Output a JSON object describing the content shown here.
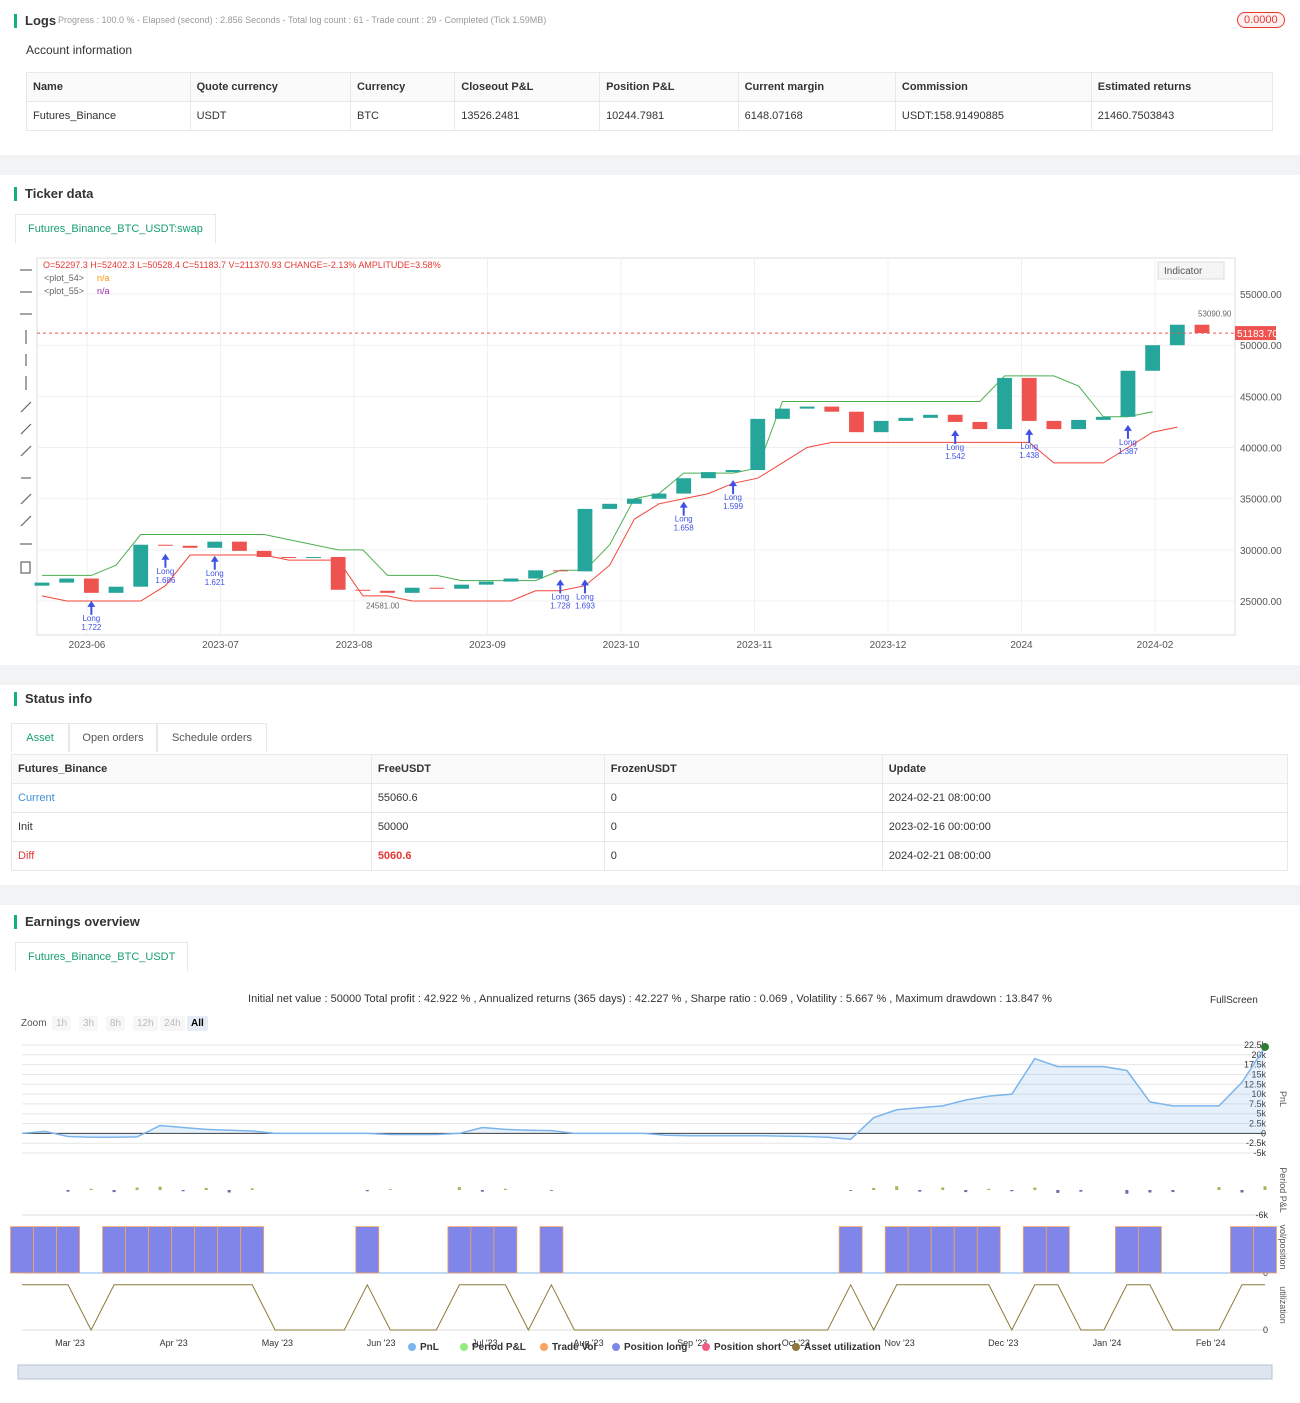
{
  "logs": {
    "title": "Logs",
    "progress": "Progress : 100.0 % - Elapsed (second) : 2.856  Seconds - Total log count : 61 - Trade count : 29 - Completed (Tick 1.59MB)",
    "badge": "0.0000"
  },
  "account": {
    "title": "Account information",
    "headers": [
      "Name",
      "Quote currency",
      "Currency",
      "Closeout P&L",
      "Position P&L",
      "Current margin",
      "Commission",
      "Estimated returns"
    ],
    "rows": [
      [
        "Futures_Binance",
        "USDT",
        "BTC",
        "13526.2481",
        "10244.7981",
        "6148.07168",
        "USDT:158.91490885",
        "21460.7503843"
      ]
    ]
  },
  "ticker": {
    "title": "Ticker data",
    "tab": "Futures_Binance_BTC_USDT:swap",
    "indicator": "Indicator"
  },
  "status": {
    "title": "Status info",
    "tabs": [
      "Asset",
      "Open orders",
      "Schedule orders"
    ],
    "headers": [
      "Futures_Binance",
      "FreeUSDT",
      "FrozenUSDT",
      "Update"
    ],
    "rows": [
      [
        "Current",
        "55060.6",
        "0",
        "2024-02-21 08:00:00"
      ],
      [
        "Init",
        "50000",
        "0",
        "2023-02-16 00:00:00"
      ],
      [
        "Diff",
        "5060.6",
        "0",
        "2024-02-21 08:00:00"
      ]
    ]
  },
  "earnings": {
    "title": "Earnings overview",
    "tab": "Futures_Binance_BTC_USDT",
    "summary": "Initial net value : 50000 Total profit : 42.922 % , Annualized returns (365 days) : 42.227 % , Sharpe ratio : 0.069 , Volatility : 5.667 % , Maximum drawdown : 13.847 %",
    "fullscreen": "FullScreen",
    "zoom_label": "Zoom",
    "zoom": [
      "1h",
      "3h",
      "8h",
      "12h",
      "24h",
      "All"
    ]
  },
  "chart_data": [
    {
      "type": "candlestick",
      "ohlc": "O=52297.3 H=52402.3 L=50528.4 C=51183.7 V=211370.93 CHANGE=-2.13% AMPLITUDE=3.58%",
      "legend": [
        {
          "name": "<plot_54>",
          "value": "n/a"
        },
        {
          "name": "<plot_55>",
          "value": "n/a"
        }
      ],
      "xtick_labels": [
        "2023-06",
        "2023-07",
        "2023-08",
        "2023-09",
        "2023-10",
        "2023-11",
        "2023-12",
        "2024",
        "2024-02"
      ],
      "ylim": [
        21680,
        58520
      ],
      "yticks": [
        {
          "value": 25000,
          "label": "25000.00"
        },
        {
          "value": 30000,
          "label": "30000.00"
        },
        {
          "value": 35000,
          "label": "35000.00"
        },
        {
          "value": 40000,
          "label": "40000.00"
        },
        {
          "value": 45000,
          "label": "45000.00"
        },
        {
          "value": 50000,
          "label": "50000.00"
        },
        {
          "value": 55000,
          "label": "55000.00"
        }
      ],
      "last_price": {
        "value": 51183.7,
        "label": "51183.70"
      },
      "high_mark": {
        "value": 53090.9,
        "label": "53090.90"
      },
      "low_mark": {
        "value": 24581,
        "label": "24581.00"
      },
      "up_color": "#26a69a",
      "down_color": "#ef5350",
      "open": [
        26500,
        26800,
        27200,
        25800,
        26400,
        30500,
        30400,
        30200,
        30800,
        29900,
        29300,
        29200,
        29300,
        26100,
        26000,
        25800,
        26300,
        26200,
        26600,
        26900,
        27200,
        28000,
        27900,
        34000,
        34500,
        35000,
        35500,
        37000,
        37600,
        37800,
        42800,
        43800,
        44000,
        43500,
        41500,
        42600,
        42900,
        43200,
        42500,
        41800,
        46800,
        42600,
        41800,
        42700,
        43000,
        47500,
        50000,
        52000
      ],
      "close": [
        26800,
        27200,
        25800,
        26400,
        30500,
        30400,
        30200,
        30800,
        29900,
        29300,
        29200,
        29300,
        26100,
        26000,
        25800,
        26300,
        26200,
        26600,
        26900,
        27200,
        28000,
        27900,
        34000,
        34500,
        35000,
        35500,
        37000,
        37600,
        37800,
        42800,
        43800,
        44000,
        43500,
        41500,
        42600,
        42900,
        43200,
        42500,
        41800,
        46800,
        42600,
        41800,
        42700,
        43000,
        47500,
        50000,
        52000,
        51183.7
      ],
      "series": [
        {
          "name": "upper",
          "color": "#4caf50",
          "values": [
            27500,
            27500,
            27500,
            28500,
            31500,
            31500,
            31500,
            31500,
            31500,
            31500,
            31000,
            30500,
            30000,
            30000,
            27500,
            27500,
            27500,
            27000,
            27000,
            27000,
            27000,
            28000,
            28000,
            30500,
            35000,
            35500,
            37500,
            37500,
            37500,
            38000,
            44500,
            44500,
            44500,
            44500,
            44500,
            44500,
            44500,
            44500,
            44500,
            47000,
            47000,
            47000,
            46000,
            43000,
            43000,
            43500,
            null,
            null
          ]
        },
        {
          "name": "lower",
          "color": "#f44336",
          "values": [
            25500,
            25000,
            25000,
            25000,
            25000,
            26500,
            29500,
            29500,
            29500,
            29500,
            29000,
            29000,
            29000,
            25500,
            25500,
            25000,
            25000,
            25000,
            25000,
            25000,
            26000,
            26000,
            26500,
            28500,
            33000,
            34500,
            35000,
            35500,
            36500,
            37000,
            38500,
            40000,
            40500,
            40500,
            40500,
            40500,
            40500,
            40500,
            40500,
            40500,
            40500,
            38500,
            38500,
            38500,
            40000,
            41500,
            42000,
            null
          ]
        }
      ],
      "trade_label": "Long",
      "trade_color": "#3f51e5",
      "long_qty": [
        null,
        null,
        1.722,
        null,
        null,
        1.686,
        null,
        1.621,
        null,
        null,
        null,
        null,
        null,
        null,
        null,
        null,
        null,
        null,
        null,
        null,
        null,
        1.728,
        1.693,
        null,
        null,
        null,
        1.658,
        null,
        1.599,
        null,
        null,
        null,
        null,
        null,
        null,
        null,
        null,
        1.542,
        null,
        null,
        1.438,
        null,
        null,
        null,
        1.387,
        null,
        null,
        null
      ]
    },
    {
      "type": "line",
      "xtick_labels": [
        "Mar '23",
        "Apr '23",
        "May '23",
        "Jun '23",
        "Jul '23",
        "Aug '23",
        "Sep '23",
        "Oct '23",
        "Nov '23",
        "Dec '23",
        "Jan '24",
        "Feb '24"
      ],
      "ylim": [
        -6270,
        23770
      ],
      "yticks": [
        {
          "value": 22500,
          "label": "22.5k"
        },
        {
          "value": 20000,
          "label": "20k"
        },
        {
          "value": 17500,
          "label": "17.5k"
        },
        {
          "value": 15000,
          "label": "15k"
        },
        {
          "value": 12500,
          "label": "12.5k"
        },
        {
          "value": 10000,
          "label": "10k"
        },
        {
          "value": 7500,
          "label": "7.5k"
        },
        {
          "value": 5000,
          "label": "5k"
        },
        {
          "value": 2500,
          "label": "2.5k"
        },
        0,
        {
          "value": -2500,
          "label": "-2.5k"
        },
        {
          "value": -5000,
          "label": "-5k"
        }
      ],
      "period_ylim": [
        -6000,
        6000
      ],
      "period_yticks": [
        {
          "value": -6000,
          "label": "-6k"
        }
      ],
      "position_ylim": [
        0,
        1.1
      ],
      "position_yticks": [
        0
      ],
      "util_ylim": [
        0,
        1.05
      ],
      "util_yticks": [
        0
      ],
      "axis_labels": {
        "pnl": "PnL",
        "period": "Period P&L",
        "position": "vol/position",
        "util": "utilization"
      },
      "series": [
        {
          "name": "PnL",
          "color": "#7cb5ec",
          "values": [
            0,
            500,
            -800,
            -1000,
            -1000,
            -900,
            2000,
            1500,
            1000,
            800,
            600,
            0,
            0,
            0,
            0,
            0,
            -300,
            -300,
            -300,
            0,
            1500,
            1000,
            800,
            700,
            0,
            0,
            0,
            0,
            -500,
            -600,
            -600,
            -600,
            -600,
            -700,
            -800,
            -1000,
            -1500,
            4000,
            6000,
            6500,
            7000,
            8500,
            9500,
            10000,
            19000,
            17000,
            17000,
            17000,
            16000,
            8000,
            7000,
            7000,
            7000,
            13000,
            22000
          ]
        },
        {
          "name": "Period P&L",
          "color": "#90ed7d",
          "values": [
            null,
            null,
            -400,
            300,
            -500,
            600,
            800,
            -300,
            500,
            -600,
            400,
            null,
            null,
            null,
            null,
            -300,
            200,
            null,
            null,
            700,
            -400,
            300,
            null,
            -200,
            null,
            null,
            null,
            null,
            null,
            null,
            null,
            null,
            null,
            null,
            null,
            null,
            -200,
            500,
            900,
            -400,
            600,
            -500,
            300,
            -300,
            600,
            -700,
            -400,
            null,
            -900,
            -600,
            -500,
            null,
            700,
            -600,
            900
          ]
        },
        {
          "name": "Trade Vol",
          "color": "#f7a35c"
        },
        {
          "name": "Position long",
          "color": "#8085e9",
          "values": [
            1,
            1,
            1,
            0,
            1,
            1,
            1,
            1,
            1,
            1,
            1,
            0,
            0,
            0,
            0,
            1,
            0,
            0,
            0,
            1,
            1,
            1,
            0,
            1,
            0,
            0,
            0,
            0,
            0,
            0,
            0,
            0,
            0,
            0,
            0,
            0,
            1,
            0,
            1,
            1,
            1,
            1,
            1,
            0,
            1,
            1,
            0,
            0,
            1,
            1,
            0,
            0,
            0,
            1,
            1
          ]
        },
        {
          "name": "Position short",
          "color": "#f15c80"
        },
        {
          "name": "Asset utilization",
          "color": "#8d7a3a",
          "values": [
            0.95,
            0.95,
            0.95,
            0,
            0.95,
            0.95,
            0.95,
            0.95,
            0.95,
            0.95,
            0.95,
            0,
            0,
            0,
            0,
            0.95,
            0,
            0,
            0,
            0.95,
            0.95,
            0.95,
            0,
            0.95,
            0,
            0,
            0,
            0,
            0,
            0,
            0,
            0,
            0,
            0,
            0,
            0,
            0.95,
            0,
            0.95,
            0.95,
            0.95,
            0.95,
            0.95,
            0,
            0.95,
            0.95,
            0,
            0,
            0.95,
            0.95,
            0,
            0,
            0,
            0.95,
            0.95
          ]
        }
      ]
    }
  ]
}
